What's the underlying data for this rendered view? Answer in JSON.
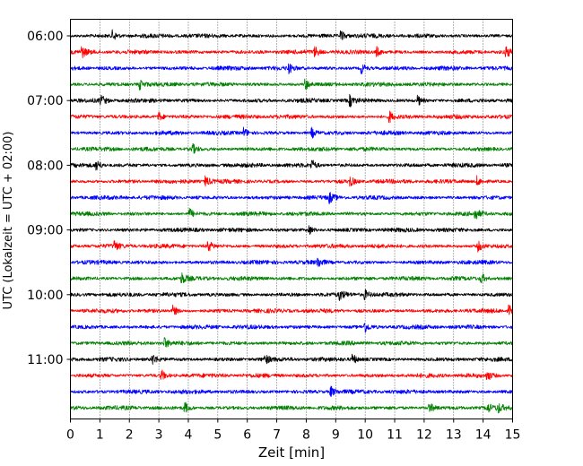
{
  "chart_data": {
    "type": "line",
    "title": "",
    "xlabel": "Zeit  [min]",
    "ylabel": "UTC (Lokalzeit = UTC + 02:00)",
    "xlim": [
      0,
      15
    ],
    "xticks": [
      0,
      1,
      2,
      3,
      4,
      5,
      6,
      7,
      8,
      9,
      10,
      11,
      12,
      13,
      14,
      15
    ],
    "xtick_labels": [
      "0",
      "1",
      "2",
      "3",
      "4",
      "5",
      "6",
      "7",
      "8",
      "9",
      "10",
      "11",
      "12",
      "13",
      "14",
      "15"
    ],
    "ytick_labels": [
      "06:00",
      "07:00",
      "08:00",
      "09:00",
      "10:00",
      "11:00"
    ],
    "grid": "vertical dotted at each minute",
    "trace_interval_minutes": 15,
    "trace_start": "06:00",
    "trace_colors": [
      "#000000",
      "#ff0000",
      "#0000ff",
      "#008000"
    ],
    "series": [
      {
        "start": "06:00",
        "color": "#000000",
        "events_min": [
          1.45,
          9.2
        ]
      },
      {
        "start": "06:15",
        "color": "#ff0000",
        "events_min": [
          0.4,
          8.3,
          10.4,
          14.8
        ]
      },
      {
        "start": "06:30",
        "color": "#0000ff",
        "events_min": [
          7.4,
          9.9
        ]
      },
      {
        "start": "06:45",
        "color": "#008000",
        "events_min": [
          2.35,
          8.0
        ]
      },
      {
        "start": "07:00",
        "color": "#000000",
        "events_min": [
          1.05,
          9.5,
          11.8
        ]
      },
      {
        "start": "07:15",
        "color": "#ff0000",
        "events_min": [
          3.0,
          10.85
        ]
      },
      {
        "start": "07:30",
        "color": "#0000ff",
        "events_min": [
          5.9,
          8.2
        ]
      },
      {
        "start": "07:45",
        "color": "#008000",
        "events_min": [
          4.15
        ]
      },
      {
        "start": "08:00",
        "color": "#000000",
        "events_min": [
          0.9,
          8.2
        ]
      },
      {
        "start": "08:15",
        "color": "#ff0000",
        "events_min": [
          4.6,
          9.5,
          13.8
        ]
      },
      {
        "start": "08:30",
        "color": "#0000ff",
        "events_min": [
          8.8
        ]
      },
      {
        "start": "08:45",
        "color": "#008000",
        "events_min": [
          4.05,
          13.75
        ]
      },
      {
        "start": "09:00",
        "color": "#000000",
        "events_min": [
          8.1
        ]
      },
      {
        "start": "09:15",
        "color": "#ff0000",
        "events_min": [
          1.5,
          4.7,
          13.85
        ]
      },
      {
        "start": "09:30",
        "color": "#0000ff",
        "events_min": [
          8.4
        ]
      },
      {
        "start": "09:45",
        "color": "#008000",
        "events_min": [
          3.8,
          13.95
        ]
      },
      {
        "start": "10:00",
        "color": "#000000",
        "events_min": [
          9.15,
          10.0
        ]
      },
      {
        "start": "10:15",
        "color": "#ff0000",
        "events_min": [
          3.5,
          14.9
        ]
      },
      {
        "start": "10:30",
        "color": "#0000ff",
        "events_min": [
          10.0
        ]
      },
      {
        "start": "10:45",
        "color": "#008000",
        "events_min": [
          3.2
        ]
      },
      {
        "start": "11:00",
        "color": "#000000",
        "events_min": [
          2.8,
          6.6,
          9.6
        ]
      },
      {
        "start": "11:15",
        "color": "#ff0000",
        "events_min": [
          3.1,
          14.15
        ]
      },
      {
        "start": "11:30",
        "color": "#0000ff",
        "events_min": [
          8.85
        ]
      },
      {
        "start": "11:45",
        "color": "#008000",
        "events_min": [
          3.9,
          12.2,
          14.15,
          14.5
        ]
      }
    ]
  }
}
